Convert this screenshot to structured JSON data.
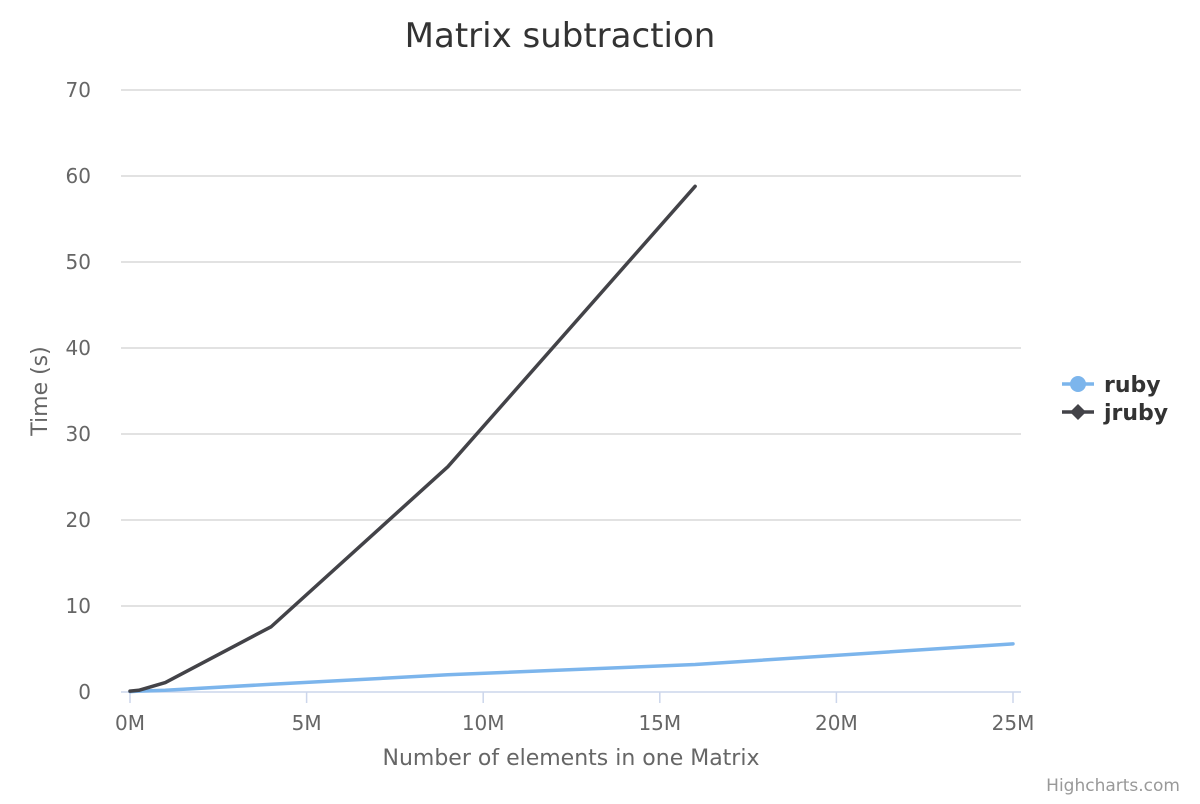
{
  "chart_data": {
    "type": "line",
    "title": "Matrix subtraction",
    "xlabel": "Number of elements in one Matrix",
    "ylabel": "Time (s)",
    "xlim": [
      0,
      25
    ],
    "ylim": [
      0,
      70
    ],
    "x_ticks": [
      0,
      5,
      10,
      15,
      20,
      25
    ],
    "x_tick_labels": [
      "0M",
      "5M",
      "10M",
      "15M",
      "20M",
      "25M"
    ],
    "y_ticks": [
      0,
      10,
      20,
      30,
      40,
      50,
      60,
      70
    ],
    "y_tick_labels": [
      "0",
      "10",
      "20",
      "30",
      "40",
      "50",
      "60",
      "70"
    ],
    "grid": true,
    "legend_position": "right",
    "series": [
      {
        "name": "ruby",
        "color": "#7cb5ec",
        "marker": "circle",
        "x": [
          0,
          0.25,
          1,
          4,
          9,
          16,
          25
        ],
        "y": [
          0.05,
          0.1,
          0.2,
          0.9,
          2.0,
          3.2,
          5.6
        ]
      },
      {
        "name": "jruby",
        "color": "#434348",
        "marker": "diamond",
        "x": [
          0,
          0.25,
          1,
          4,
          9,
          16
        ],
        "y": [
          0.1,
          0.2,
          1.1,
          7.6,
          26.2,
          58.8
        ]
      }
    ]
  },
  "credits": "Highcharts.com"
}
